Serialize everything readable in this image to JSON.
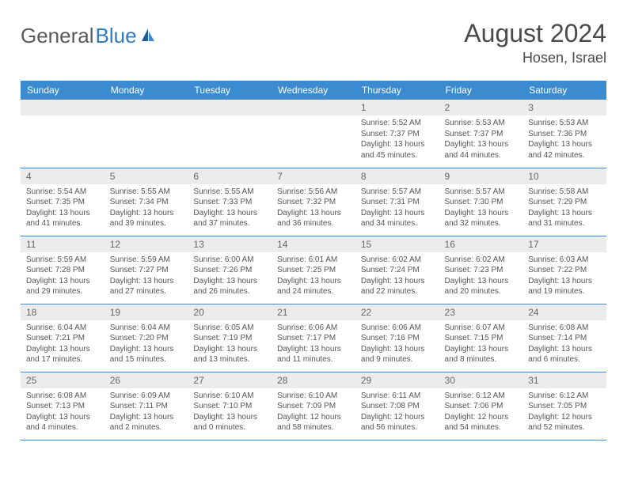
{
  "brand": {
    "part1": "General",
    "part2": "Blue"
  },
  "title": "August 2024",
  "location": "Hosen, Israel",
  "colors": {
    "header_bg": "#3a8bd0",
    "header_text": "#ffffff",
    "daynum_bg": "#ececec",
    "row_border": "#3a8bd0",
    "brand_blue": "#2f7bbf",
    "text": "#555555"
  },
  "weekdays": [
    "Sunday",
    "Monday",
    "Tuesday",
    "Wednesday",
    "Thursday",
    "Friday",
    "Saturday"
  ],
  "weeks": [
    [
      {
        "n": "",
        "sunrise": "",
        "sunset": "",
        "daylight": ""
      },
      {
        "n": "",
        "sunrise": "",
        "sunset": "",
        "daylight": ""
      },
      {
        "n": "",
        "sunrise": "",
        "sunset": "",
        "daylight": ""
      },
      {
        "n": "",
        "sunrise": "",
        "sunset": "",
        "daylight": ""
      },
      {
        "n": "1",
        "sunrise": "Sunrise: 5:52 AM",
        "sunset": "Sunset: 7:37 PM",
        "daylight": "Daylight: 13 hours and 45 minutes."
      },
      {
        "n": "2",
        "sunrise": "Sunrise: 5:53 AM",
        "sunset": "Sunset: 7:37 PM",
        "daylight": "Daylight: 13 hours and 44 minutes."
      },
      {
        "n": "3",
        "sunrise": "Sunrise: 5:53 AM",
        "sunset": "Sunset: 7:36 PM",
        "daylight": "Daylight: 13 hours and 42 minutes."
      }
    ],
    [
      {
        "n": "4",
        "sunrise": "Sunrise: 5:54 AM",
        "sunset": "Sunset: 7:35 PM",
        "daylight": "Daylight: 13 hours and 41 minutes."
      },
      {
        "n": "5",
        "sunrise": "Sunrise: 5:55 AM",
        "sunset": "Sunset: 7:34 PM",
        "daylight": "Daylight: 13 hours and 39 minutes."
      },
      {
        "n": "6",
        "sunrise": "Sunrise: 5:55 AM",
        "sunset": "Sunset: 7:33 PM",
        "daylight": "Daylight: 13 hours and 37 minutes."
      },
      {
        "n": "7",
        "sunrise": "Sunrise: 5:56 AM",
        "sunset": "Sunset: 7:32 PM",
        "daylight": "Daylight: 13 hours and 36 minutes."
      },
      {
        "n": "8",
        "sunrise": "Sunrise: 5:57 AM",
        "sunset": "Sunset: 7:31 PM",
        "daylight": "Daylight: 13 hours and 34 minutes."
      },
      {
        "n": "9",
        "sunrise": "Sunrise: 5:57 AM",
        "sunset": "Sunset: 7:30 PM",
        "daylight": "Daylight: 13 hours and 32 minutes."
      },
      {
        "n": "10",
        "sunrise": "Sunrise: 5:58 AM",
        "sunset": "Sunset: 7:29 PM",
        "daylight": "Daylight: 13 hours and 31 minutes."
      }
    ],
    [
      {
        "n": "11",
        "sunrise": "Sunrise: 5:59 AM",
        "sunset": "Sunset: 7:28 PM",
        "daylight": "Daylight: 13 hours and 29 minutes."
      },
      {
        "n": "12",
        "sunrise": "Sunrise: 5:59 AM",
        "sunset": "Sunset: 7:27 PM",
        "daylight": "Daylight: 13 hours and 27 minutes."
      },
      {
        "n": "13",
        "sunrise": "Sunrise: 6:00 AM",
        "sunset": "Sunset: 7:26 PM",
        "daylight": "Daylight: 13 hours and 26 minutes."
      },
      {
        "n": "14",
        "sunrise": "Sunrise: 6:01 AM",
        "sunset": "Sunset: 7:25 PM",
        "daylight": "Daylight: 13 hours and 24 minutes."
      },
      {
        "n": "15",
        "sunrise": "Sunrise: 6:02 AM",
        "sunset": "Sunset: 7:24 PM",
        "daylight": "Daylight: 13 hours and 22 minutes."
      },
      {
        "n": "16",
        "sunrise": "Sunrise: 6:02 AM",
        "sunset": "Sunset: 7:23 PM",
        "daylight": "Daylight: 13 hours and 20 minutes."
      },
      {
        "n": "17",
        "sunrise": "Sunrise: 6:03 AM",
        "sunset": "Sunset: 7:22 PM",
        "daylight": "Daylight: 13 hours and 19 minutes."
      }
    ],
    [
      {
        "n": "18",
        "sunrise": "Sunrise: 6:04 AM",
        "sunset": "Sunset: 7:21 PM",
        "daylight": "Daylight: 13 hours and 17 minutes."
      },
      {
        "n": "19",
        "sunrise": "Sunrise: 6:04 AM",
        "sunset": "Sunset: 7:20 PM",
        "daylight": "Daylight: 13 hours and 15 minutes."
      },
      {
        "n": "20",
        "sunrise": "Sunrise: 6:05 AM",
        "sunset": "Sunset: 7:19 PM",
        "daylight": "Daylight: 13 hours and 13 minutes."
      },
      {
        "n": "21",
        "sunrise": "Sunrise: 6:06 AM",
        "sunset": "Sunset: 7:17 PM",
        "daylight": "Daylight: 13 hours and 11 minutes."
      },
      {
        "n": "22",
        "sunrise": "Sunrise: 6:06 AM",
        "sunset": "Sunset: 7:16 PM",
        "daylight": "Daylight: 13 hours and 9 minutes."
      },
      {
        "n": "23",
        "sunrise": "Sunrise: 6:07 AM",
        "sunset": "Sunset: 7:15 PM",
        "daylight": "Daylight: 13 hours and 8 minutes."
      },
      {
        "n": "24",
        "sunrise": "Sunrise: 6:08 AM",
        "sunset": "Sunset: 7:14 PM",
        "daylight": "Daylight: 13 hours and 6 minutes."
      }
    ],
    [
      {
        "n": "25",
        "sunrise": "Sunrise: 6:08 AM",
        "sunset": "Sunset: 7:13 PM",
        "daylight": "Daylight: 13 hours and 4 minutes."
      },
      {
        "n": "26",
        "sunrise": "Sunrise: 6:09 AM",
        "sunset": "Sunset: 7:11 PM",
        "daylight": "Daylight: 13 hours and 2 minutes."
      },
      {
        "n": "27",
        "sunrise": "Sunrise: 6:10 AM",
        "sunset": "Sunset: 7:10 PM",
        "daylight": "Daylight: 13 hours and 0 minutes."
      },
      {
        "n": "28",
        "sunrise": "Sunrise: 6:10 AM",
        "sunset": "Sunset: 7:09 PM",
        "daylight": "Daylight: 12 hours and 58 minutes."
      },
      {
        "n": "29",
        "sunrise": "Sunrise: 6:11 AM",
        "sunset": "Sunset: 7:08 PM",
        "daylight": "Daylight: 12 hours and 56 minutes."
      },
      {
        "n": "30",
        "sunrise": "Sunrise: 6:12 AM",
        "sunset": "Sunset: 7:06 PM",
        "daylight": "Daylight: 12 hours and 54 minutes."
      },
      {
        "n": "31",
        "sunrise": "Sunrise: 6:12 AM",
        "sunset": "Sunset: 7:05 PM",
        "daylight": "Daylight: 12 hours and 52 minutes."
      }
    ]
  ]
}
